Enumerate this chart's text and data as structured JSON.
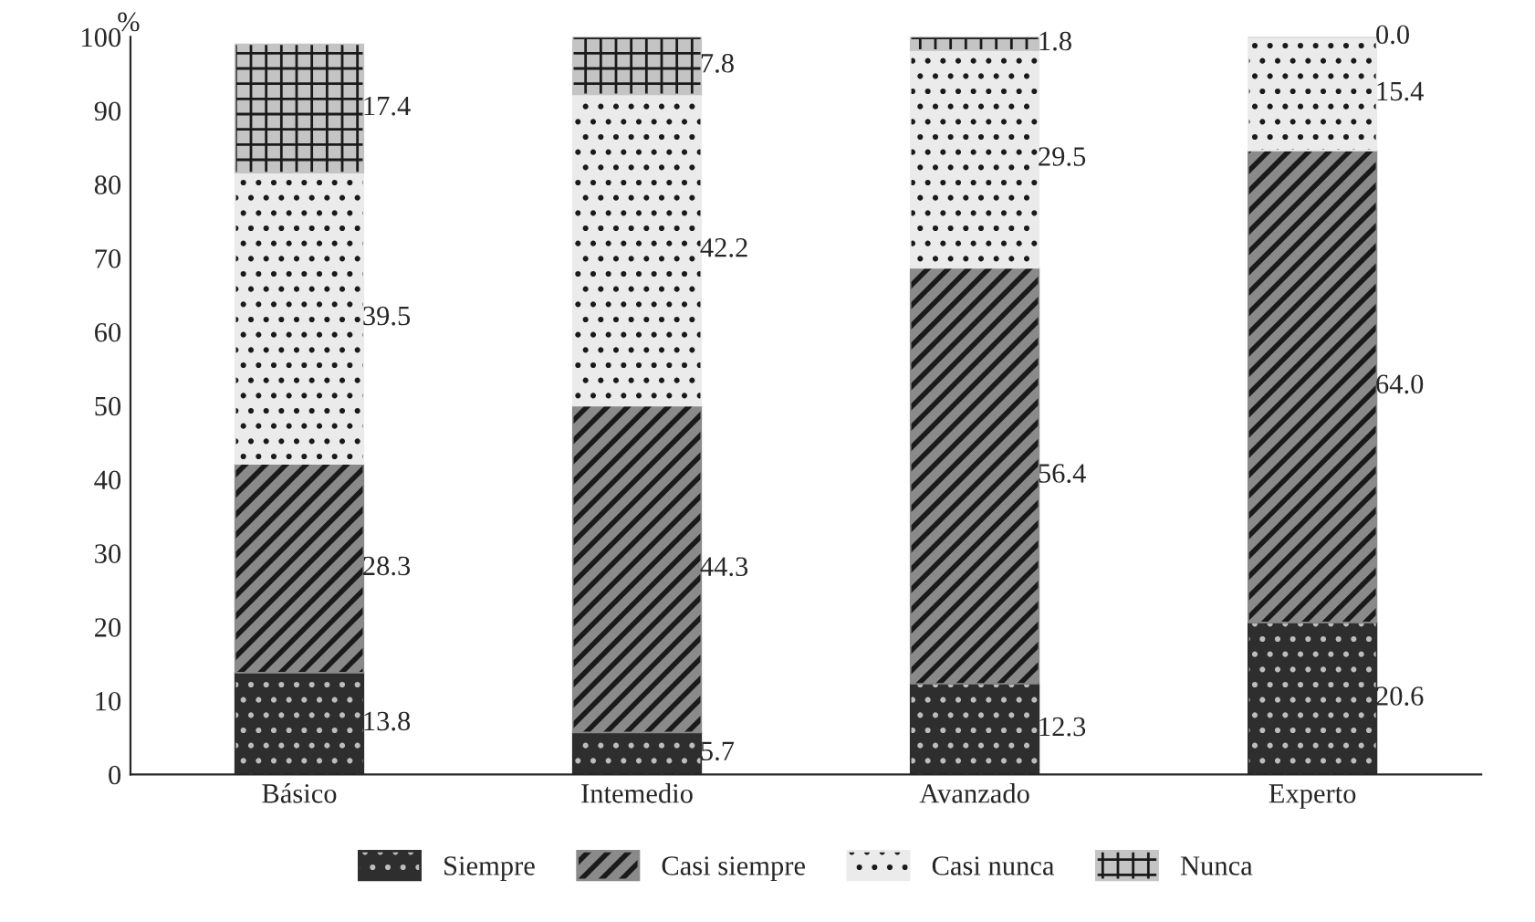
{
  "chart_data": {
    "type": "bar",
    "stacked": true,
    "ylabel": "%",
    "categories": [
      "Básico",
      "Intemedio",
      "Avanzado",
      "Experto"
    ],
    "series": [
      {
        "name": "Siempre",
        "color": "#2e2e2e",
        "values": [
          13.8,
          5.7,
          12.3,
          20.6
        ],
        "value_labels": [
          "13.8",
          "5.7",
          "12.3",
          "20.6"
        ]
      },
      {
        "name": "Casi siempre",
        "color": "#8a8a8a",
        "values": [
          28.3,
          44.3,
          56.4,
          64.0
        ],
        "value_labels": [
          "28.3",
          "44.3",
          "56.4",
          "64.0"
        ]
      },
      {
        "name": "Casi nunca",
        "color": "#ebebeb",
        "values": [
          39.5,
          42.2,
          29.5,
          15.4
        ],
        "value_labels": [
          "39.5",
          "42.2",
          "29.5",
          "15.4"
        ]
      },
      {
        "name": "Nunca",
        "color": "#c4c4c4",
        "values": [
          17.4,
          7.8,
          1.8,
          0.0
        ],
        "value_labels": [
          "17.4",
          "7.8",
          "1.8",
          "0.0"
        ]
      }
    ],
    "ylim": [
      0,
      100
    ],
    "yticks": [
      0,
      10,
      20,
      30,
      40,
      50,
      60,
      70,
      80,
      90,
      100
    ],
    "grid": false,
    "legend": "bottom"
  }
}
